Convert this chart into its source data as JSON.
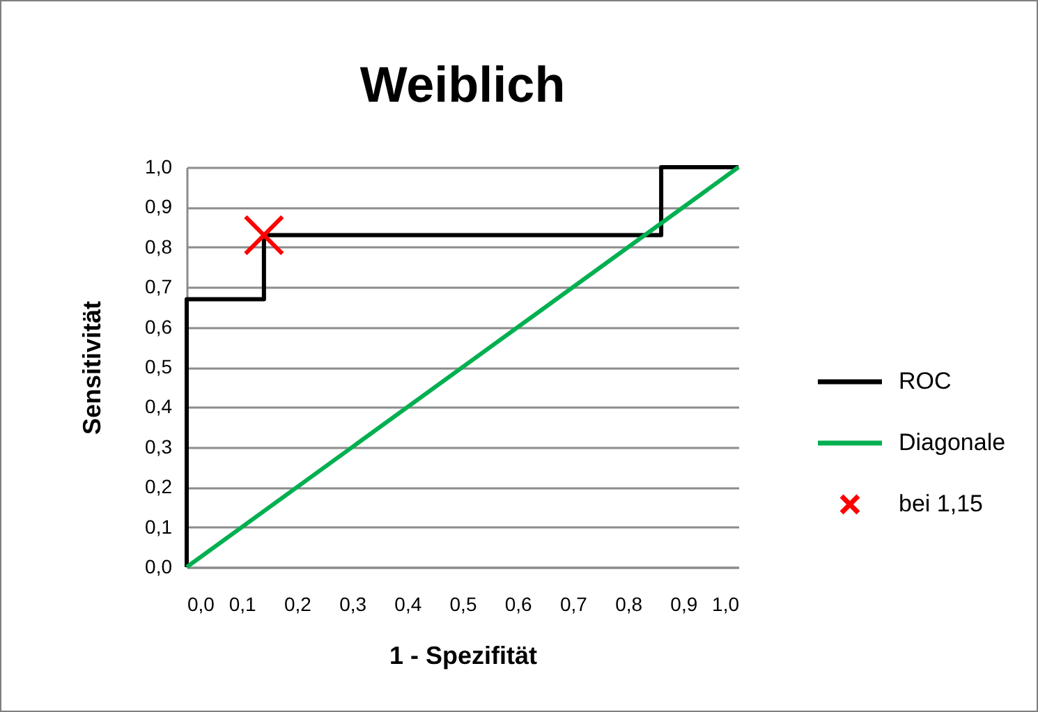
{
  "chart_data": {
    "type": "line",
    "title": "Weiblich",
    "xlabel": "1 - Spezifität",
    "ylabel": "Sensitivität",
    "series": [
      {
        "name": "ROC",
        "color": "#000000",
        "x": [
          0,
          0,
          0.14,
          0.14,
          0.86,
          0.86,
          1
        ],
        "values": [
          0,
          0.67,
          0.67,
          0.83,
          0.83,
          1,
          1
        ]
      },
      {
        "name": "Diagonale",
        "color": "#00b050",
        "x": [
          0,
          1
        ],
        "values": [
          0,
          1
        ]
      },
      {
        "name": "bei 1,15",
        "type": "scatter",
        "marker": "cross",
        "color": "#ff0000",
        "x": [
          0.14
        ],
        "values": [
          0.83
        ]
      }
    ],
    "xlim": [
      0,
      1
    ],
    "ylim": [
      0,
      1
    ],
    "xticks": [
      {
        "value": 0,
        "label": "0,0"
      },
      {
        "value": 0.1,
        "label": "0,1"
      },
      {
        "value": 0.2,
        "label": "0,2"
      },
      {
        "value": 0.3,
        "label": "0,3"
      },
      {
        "value": 0.4,
        "label": "0,4"
      },
      {
        "value": 0.5,
        "label": "0,5"
      },
      {
        "value": 0.6,
        "label": "0,6"
      },
      {
        "value": 0.7,
        "label": "0,7"
      },
      {
        "value": 0.8,
        "label": "0,8"
      },
      {
        "value": 0.9,
        "label": "0,9"
      },
      {
        "value": 1,
        "label": "1,0"
      }
    ],
    "yticks": [
      {
        "value": 0,
        "label": "0,0"
      },
      {
        "value": 0.1,
        "label": "0,1"
      },
      {
        "value": 0.2,
        "label": "0,2"
      },
      {
        "value": 0.3,
        "label": "0,3"
      },
      {
        "value": 0.4,
        "label": "0,4"
      },
      {
        "value": 0.5,
        "label": "0,5"
      },
      {
        "value": 0.6,
        "label": "0,6"
      },
      {
        "value": 0.7,
        "label": "0,7"
      },
      {
        "value": 0.8,
        "label": "0,8"
      },
      {
        "value": 0.9,
        "label": "0,9"
      },
      {
        "value": 1,
        "label": "1,0"
      }
    ],
    "grid": "y",
    "legend": "right"
  }
}
